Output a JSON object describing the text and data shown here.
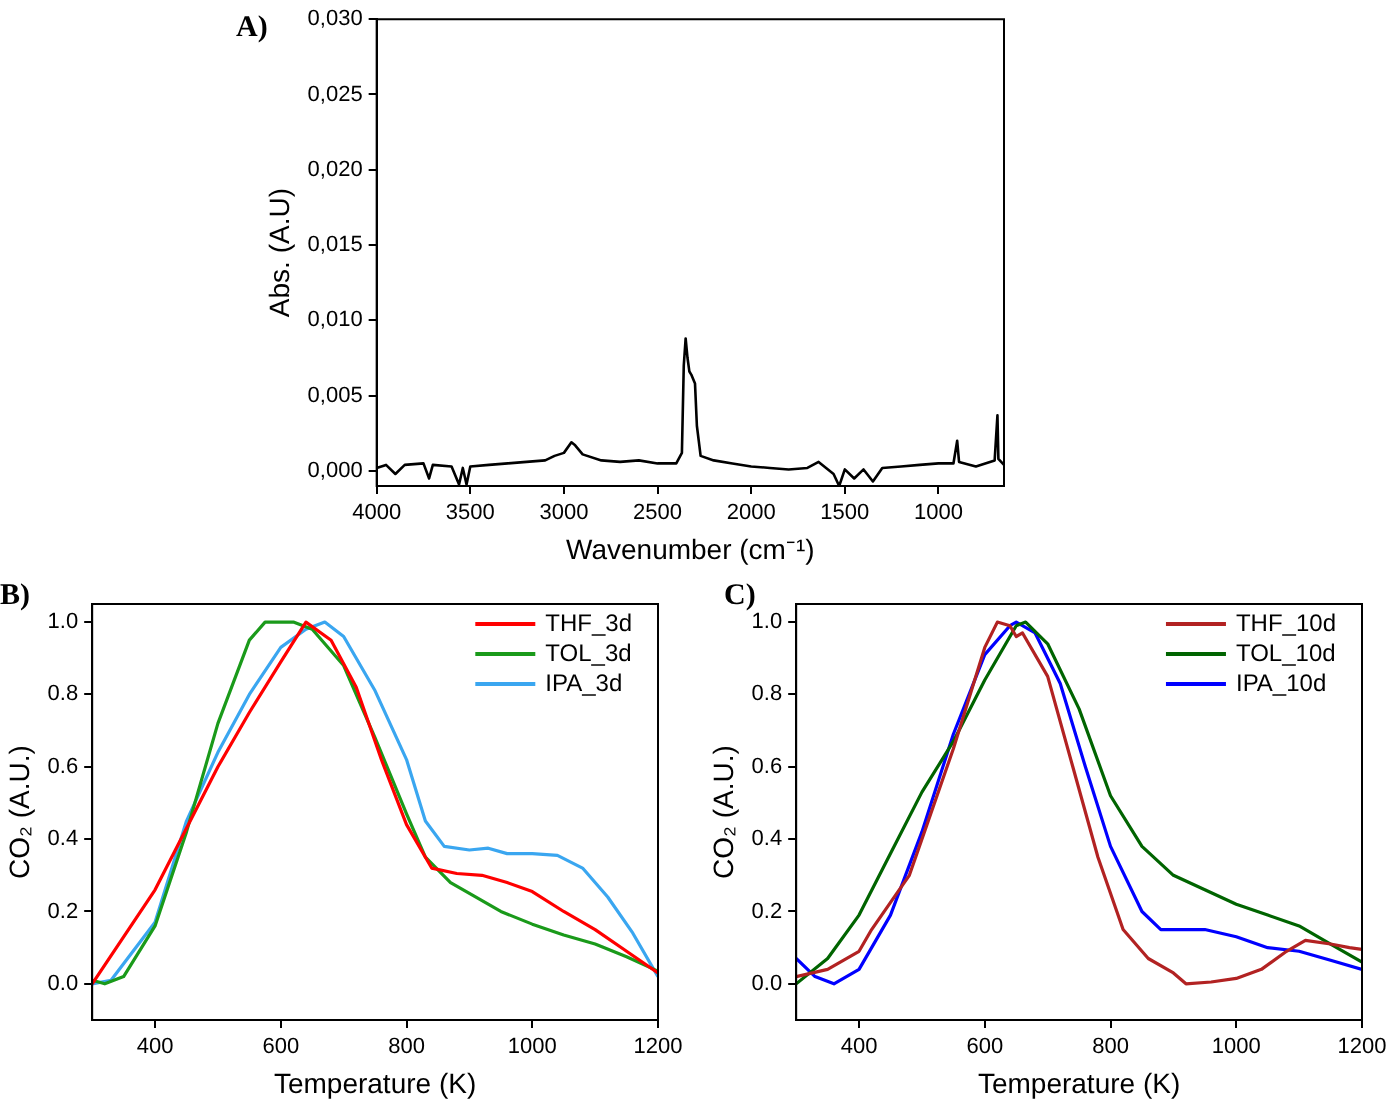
{
  "chart_data": [
    {
      "type": "line",
      "title": "A)",
      "xlabel": "Wavenumber (cm⁻¹)",
      "ylabel": "Abs. (A.U)",
      "xlim": [
        4000,
        650
      ],
      "ylim": [
        -0.001,
        0.03
      ],
      "xticks": [
        4000,
        3500,
        3000,
        2500,
        2000,
        1500,
        1000
      ],
      "yticks": [
        {
          "value": 0,
          "label": "0,000"
        },
        {
          "value": 0.005,
          "label": "0,005"
        },
        {
          "value": 0.01,
          "label": "0,010"
        },
        {
          "value": 0.015,
          "label": "0,015"
        },
        {
          "value": 0.02,
          "label": "0,020"
        },
        {
          "value": 0.025,
          "label": "0,025"
        },
        {
          "value": 0.03,
          "label": "0,030"
        }
      ],
      "grid": false,
      "legend": false,
      "marker": "none",
      "line_style": "solid",
      "series": [
        {
          "color": "#000000",
          "x": [
            4000,
            3950,
            3900,
            3850,
            3750,
            3720,
            3700,
            3600,
            3560,
            3540,
            3520,
            3500,
            3400,
            3300,
            3200,
            3100,
            3050,
            3000,
            2960,
            2940,
            2900,
            2800,
            2700,
            2600,
            2500,
            2400,
            2370,
            2360,
            2350,
            2340,
            2330,
            2320,
            2300,
            2290,
            2270,
            2200,
            2100,
            2000,
            1900,
            1800,
            1700,
            1640,
            1600,
            1560,
            1530,
            1500,
            1450,
            1400,
            1350,
            1300,
            1200,
            1100,
            1000,
            920,
            900,
            890,
            800,
            700,
            685,
            680,
            650
          ],
          "values": [
            0.0002,
            0.0004,
            -0.0002,
            0.0004,
            0.0005,
            -0.0005,
            0.0004,
            0.0003,
            -0.0009,
            0.0002,
            -0.0009,
            0.0003,
            0.0004,
            0.0005,
            0.0006,
            0.0007,
            0.001,
            0.0012,
            0.0019,
            0.0017,
            0.0011,
            0.0007,
            0.0006,
            0.0007,
            0.0005,
            0.0005,
            0.0012,
            0.007,
            0.0088,
            0.0075,
            0.0066,
            0.0064,
            0.0058,
            0.003,
            0.001,
            0.0007,
            0.0005,
            0.0003,
            0.0002,
            0.0001,
            0.0002,
            0.0006,
            0.0002,
            -0.0002,
            -0.001,
            0.0001,
            -0.0005,
            0.0001,
            -0.0007,
            0.0002,
            0.0003,
            0.0004,
            0.0005,
            0.0005,
            0.002,
            0.0006,
            0.0003,
            0.0007,
            0.0037,
            0.0008,
            0.0004
          ]
        }
      ]
    },
    {
      "type": "line",
      "title": "B)",
      "xlabel": "Temperature (K)",
      "ylabel": "CO₂ (A.U.)",
      "xlim": [
        300,
        1200
      ],
      "ylim": [
        -0.1,
        1.05
      ],
      "xticks": [
        400,
        600,
        800,
        1000,
        1200
      ],
      "yticks": [
        {
          "value": 0,
          "label": "0.0"
        },
        {
          "value": 0.2,
          "label": "0.2"
        },
        {
          "value": 0.4,
          "label": "0.4"
        },
        {
          "value": 0.6,
          "label": "0.6"
        },
        {
          "value": 0.8,
          "label": "0.8"
        },
        {
          "value": 1,
          "label": "1.0"
        }
      ],
      "grid": false,
      "legend": "top right",
      "marker": "none",
      "line_style": "solid",
      "series": [
        {
          "name": "THF_3d",
          "color": "#ff0000",
          "x": [
            300,
            400,
            450,
            500,
            550,
            600,
            640,
            680,
            720,
            760,
            800,
            840,
            880,
            920,
            960,
            1000,
            1050,
            1100,
            1150,
            1200
          ],
          "values": [
            0,
            0.26,
            0.43,
            0.6,
            0.75,
            0.89,
            1,
            0.95,
            0.82,
            0.62,
            0.44,
            0.32,
            0.305,
            0.3,
            0.28,
            0.255,
            0.2,
            0.15,
            0.09,
            0.03
          ]
        },
        {
          "name": "TOL_3d",
          "color": "#1a9a1a",
          "x": [
            300,
            320,
            350,
            400,
            450,
            500,
            550,
            575,
            620,
            650,
            700,
            750,
            800,
            830,
            870,
            900,
            950,
            1000,
            1050,
            1100,
            1150,
            1200
          ],
          "values": [
            0.01,
            0,
            0.02,
            0.16,
            0.42,
            0.72,
            0.95,
            1,
            1,
            0.98,
            0.88,
            0.68,
            0.47,
            0.35,
            0.28,
            0.25,
            0.2,
            0.165,
            0.135,
            0.11,
            0.075,
            0.035
          ]
        },
        {
          "name": "IPA_3d",
          "color": "#3aa6f0",
          "x": [
            300,
            330,
            400,
            450,
            500,
            550,
            600,
            640,
            670,
            700,
            750,
            800,
            830,
            860,
            900,
            930,
            960,
            1000,
            1040,
            1080,
            1120,
            1160,
            1200
          ],
          "values": [
            0,
            0.01,
            0.17,
            0.45,
            0.64,
            0.8,
            0.93,
            0.98,
            1,
            0.96,
            0.81,
            0.62,
            0.45,
            0.38,
            0.37,
            0.375,
            0.36,
            0.36,
            0.355,
            0.32,
            0.24,
            0.14,
            0.02
          ]
        }
      ]
    },
    {
      "type": "line",
      "title": "C)",
      "xlabel": "Temperature (K)",
      "ylabel": "CO₂ (A.U.)",
      "xlim": [
        300,
        1200
      ],
      "ylim": [
        -0.1,
        1.05
      ],
      "xticks": [
        400,
        600,
        800,
        1000,
        1200
      ],
      "yticks": [
        {
          "value": 0,
          "label": "0.0"
        },
        {
          "value": 0.2,
          "label": "0.2"
        },
        {
          "value": 0.4,
          "label": "0.4"
        },
        {
          "value": 0.6,
          "label": "0.6"
        },
        {
          "value": 0.8,
          "label": "0.8"
        },
        {
          "value": 1,
          "label": "1.0"
        }
      ],
      "grid": false,
      "legend": "top right",
      "marker": "none",
      "line_style": "solid",
      "series": [
        {
          "name": "THF_10d",
          "color": "#b22222",
          "x": [
            300,
            350,
            400,
            420,
            460,
            480,
            500,
            550,
            600,
            620,
            640,
            650,
            660,
            700,
            740,
            780,
            820,
            860,
            900,
            920,
            960,
            1000,
            1040,
            1080,
            1110,
            1150,
            1180,
            1200
          ],
          "values": [
            0.02,
            0.04,
            0.09,
            0.15,
            0.25,
            0.3,
            0.4,
            0.65,
            0.93,
            1,
            0.99,
            0.96,
            0.97,
            0.85,
            0.6,
            0.35,
            0.15,
            0.07,
            0.03,
            0,
            0.005,
            0.015,
            0.04,
            0.09,
            0.12,
            0.11,
            0.1,
            0.095
          ]
        },
        {
          "name": "TOL_10d",
          "color": "#006400",
          "x": [
            300,
            350,
            400,
            450,
            500,
            550,
            600,
            650,
            665,
            700,
            750,
            800,
            850,
            900,
            950,
            1000,
            1050,
            1100,
            1150,
            1200
          ],
          "values": [
            0,
            0.07,
            0.19,
            0.36,
            0.53,
            0.67,
            0.84,
            0.99,
            1,
            0.94,
            0.76,
            0.52,
            0.38,
            0.3,
            0.26,
            0.22,
            0.19,
            0.16,
            0.11,
            0.06
          ]
        },
        {
          "name": "IPA_10d",
          "color": "#0000ff",
          "x": [
            300,
            330,
            360,
            400,
            450,
            500,
            550,
            600,
            640,
            650,
            680,
            720,
            760,
            800,
            850,
            880,
            950,
            1000,
            1050,
            1100,
            1150,
            1200
          ],
          "values": [
            0.07,
            0.02,
            0,
            0.04,
            0.19,
            0.42,
            0.69,
            0.91,
            0.99,
            1,
            0.97,
            0.83,
            0.6,
            0.38,
            0.2,
            0.15,
            0.15,
            0.13,
            0.1,
            0.09,
            0.065,
            0.04
          ]
        }
      ]
    }
  ]
}
